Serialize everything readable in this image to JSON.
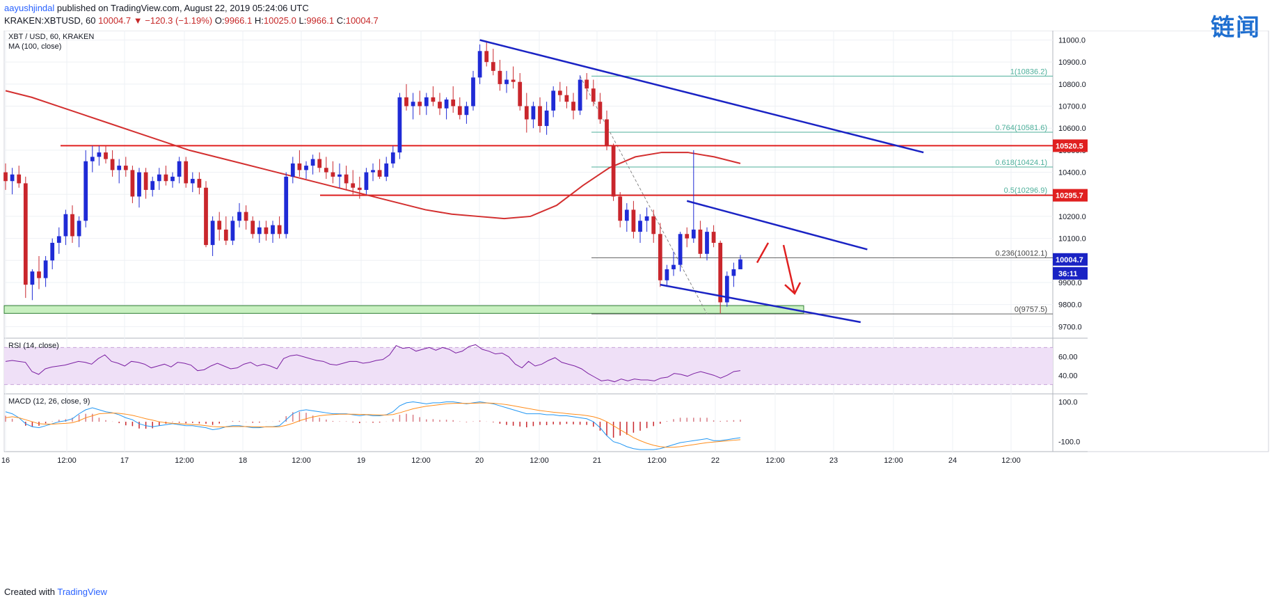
{
  "header": {
    "author": "aayushjindal",
    "published": "published on TradingView.com, August 22, 2019 05:24:06 UTC",
    "symbol": "KRAKEN:XBTUSD, 60",
    "last": "10004.7",
    "change_arrow": "▼",
    "change": "−120.3 (−1.19%)",
    "ohlc": {
      "o_label": "O:",
      "o": "9966.1",
      "h_label": "H:",
      "h": "10025.0",
      "l_label": "L:",
      "l": "9966.1",
      "c_label": "C:",
      "c": "10004.7"
    }
  },
  "watermark": "链闻",
  "footer": {
    "prefix": "Created with",
    "brand": "TradingView"
  },
  "colors": {
    "up": "#1f2bd6",
    "down": "#c9262c",
    "ma": "#d32f2f",
    "trend": "#1a23c4",
    "hline": "#e02020",
    "support_fill": "#c8f0c0",
    "support_stroke": "#2e7d32",
    "rsi_line": "#7b1fa2",
    "rsi_band": "#efe0f7",
    "macd": "#2196f3",
    "signal": "#ff8c1a",
    "hist": "#c9262c",
    "fib": "#4caf9a"
  },
  "chart_data": [
    {
      "type": "candlestick",
      "title": "XBT / USD, 60, KRAKEN",
      "indicator": "MA (100, close)",
      "x_ticks": [
        "16",
        "12:00",
        "17",
        "12:00",
        "18",
        "12:00",
        "19",
        "12:00",
        "20",
        "12:00",
        "21",
        "12:00",
        "22",
        "12:00",
        "23",
        "12:00",
        "24",
        "12:00"
      ],
      "y_ticks": [
        "11000.0",
        "10900.0",
        "10800.0",
        "10700.0",
        "10600.0",
        "10500.0",
        "10400.0",
        "10300.0",
        "10200.0",
        "10100.0",
        "10000.0",
        "9900.0",
        "9800.0",
        "9700.0"
      ],
      "ylim": [
        9660,
        11030
      ],
      "candles": [
        [
          10400,
          10440,
          10320,
          10360
        ],
        [
          10360,
          10420,
          10300,
          10390
        ],
        [
          10390,
          10430,
          10330,
          10350
        ],
        [
          10350,
          10380,
          9830,
          9890
        ],
        [
          9890,
          9960,
          9820,
          9950
        ],
        [
          9950,
          10020,
          9870,
          9920
        ],
        [
          9920,
          10020,
          9880,
          10000
        ],
        [
          10000,
          10100,
          9960,
          10080
        ],
        [
          10080,
          10150,
          10030,
          10110
        ],
        [
          10110,
          10230,
          10070,
          10210
        ],
        [
          10210,
          10250,
          10080,
          10110
        ],
        [
          10110,
          10200,
          10060,
          10180
        ],
        [
          10180,
          10500,
          10150,
          10450
        ],
        [
          10450,
          10520,
          10400,
          10470
        ],
        [
          10470,
          10520,
          10430,
          10490
        ],
        [
          10490,
          10520,
          10440,
          10460
        ],
        [
          10460,
          10500,
          10380,
          10410
        ],
        [
          10410,
          10460,
          10350,
          10430
        ],
        [
          10430,
          10470,
          10380,
          10410
        ],
        [
          10410,
          10430,
          10260,
          10290
        ],
        [
          10290,
          10420,
          10240,
          10400
        ],
        [
          10400,
          10420,
          10280,
          10320
        ],
        [
          10320,
          10380,
          10290,
          10360
        ],
        [
          10360,
          10420,
          10320,
          10390
        ],
        [
          10390,
          10430,
          10340,
          10360
        ],
        [
          10360,
          10400,
          10330,
          10380
        ],
        [
          10380,
          10470,
          10350,
          10450
        ],
        [
          10450,
          10470,
          10330,
          10350
        ],
        [
          10350,
          10400,
          10310,
          10370
        ],
        [
          10370,
          10400,
          10300,
          10330
        ],
        [
          10330,
          10360,
          10060,
          10070
        ],
        [
          10070,
          10200,
          10020,
          10180
        ],
        [
          10180,
          10220,
          10090,
          10140
        ],
        [
          10140,
          10200,
          10070,
          10090
        ],
        [
          10090,
          10200,
          10070,
          10180
        ],
        [
          10180,
          10260,
          10150,
          10220
        ],
        [
          10220,
          10250,
          10140,
          10180
        ],
        [
          10180,
          10200,
          10100,
          10120
        ],
        [
          10120,
          10180,
          10080,
          10150
        ],
        [
          10150,
          10180,
          10090,
          10120
        ],
        [
          10120,
          10180,
          10080,
          10160
        ],
        [
          10160,
          10200,
          10100,
          10120
        ],
        [
          10120,
          10400,
          10100,
          10380
        ],
        [
          10380,
          10470,
          10350,
          10440
        ],
        [
          10440,
          10500,
          10380,
          10410
        ],
        [
          10410,
          10450,
          10370,
          10430
        ],
        [
          10430,
          10480,
          10390,
          10460
        ],
        [
          10460,
          10490,
          10400,
          10420
        ],
        [
          10420,
          10470,
          10370,
          10400
        ],
        [
          10400,
          10450,
          10350,
          10380
        ],
        [
          10380,
          10440,
          10330,
          10390
        ],
        [
          10390,
          10430,
          10320,
          10350
        ],
        [
          10350,
          10410,
          10300,
          10330
        ],
        [
          10330,
          10380,
          10280,
          10320
        ],
        [
          10320,
          10420,
          10300,
          10400
        ],
        [
          10400,
          10440,
          10360,
          10410
        ],
        [
          10410,
          10460,
          10370,
          10380
        ],
        [
          10380,
          10470,
          10360,
          10440
        ],
        [
          10440,
          10520,
          10420,
          10490
        ],
        [
          10490,
          10760,
          10460,
          10740
        ],
        [
          10740,
          10800,
          10680,
          10700
        ],
        [
          10700,
          10760,
          10640,
          10720
        ],
        [
          10720,
          10770,
          10660,
          10700
        ],
        [
          10700,
          10760,
          10660,
          10740
        ],
        [
          10740,
          10790,
          10700,
          10720
        ],
        [
          10720,
          10760,
          10660,
          10690
        ],
        [
          10690,
          10740,
          10640,
          10730
        ],
        [
          10730,
          10790,
          10670,
          10700
        ],
        [
          10700,
          10740,
          10640,
          10660
        ],
        [
          10660,
          10720,
          10620,
          10700
        ],
        [
          10700,
          10860,
          10680,
          10830
        ],
        [
          10830,
          10980,
          10800,
          10950
        ],
        [
          10950,
          10990,
          10880,
          10900
        ],
        [
          10900,
          10960,
          10840,
          10860
        ],
        [
          10860,
          10910,
          10770,
          10800
        ],
        [
          10800,
          10860,
          10760,
          10820
        ],
        [
          10820,
          10880,
          10780,
          10810
        ],
        [
          10810,
          10850,
          10680,
          10700
        ],
        [
          10700,
          10760,
          10580,
          10640
        ],
        [
          10640,
          10720,
          10600,
          10700
        ],
        [
          10700,
          10740,
          10580,
          10610
        ],
        [
          10610,
          10720,
          10570,
          10680
        ],
        [
          10680,
          10790,
          10650,
          10770
        ],
        [
          10770,
          10810,
          10720,
          10750
        ],
        [
          10750,
          10790,
          10690,
          10720
        ],
        [
          10720,
          10760,
          10640,
          10680
        ],
        [
          10680,
          10840,
          10660,
          10820
        ],
        [
          10820,
          10850,
          10730,
          10780
        ],
        [
          10780,
          10820,
          10700,
          10720
        ],
        [
          10720,
          10760,
          10620,
          10640
        ],
        [
          10640,
          10680,
          10500,
          10520
        ],
        [
          10520,
          10530,
          10270,
          10290
        ],
        [
          10290,
          10310,
          10150,
          10180
        ],
        [
          10180,
          10260,
          10130,
          10230
        ],
        [
          10230,
          10270,
          10100,
          10130
        ],
        [
          10130,
          10210,
          10080,
          10180
        ],
        [
          10180,
          10240,
          10130,
          10200
        ],
        [
          10200,
          10230,
          10080,
          10120
        ],
        [
          10120,
          10170,
          9880,
          9910
        ],
        [
          9910,
          9980,
          9880,
          9960
        ],
        [
          9960,
          10040,
          9930,
          9980
        ],
        [
          9980,
          10130,
          9950,
          10120
        ],
        [
          10120,
          10150,
          10060,
          10100
        ],
        [
          10100,
          10500,
          10080,
          10140
        ],
        [
          10140,
          10180,
          10010,
          10030
        ],
        [
          10030,
          10150,
          10000,
          10130
        ],
        [
          10130,
          10160,
          10060,
          10080
        ],
        [
          10080,
          10090,
          9760,
          9810
        ],
        [
          9810,
          9950,
          9790,
          9930
        ],
        [
          9930,
          9990,
          9880,
          9960
        ],
        [
          9960,
          10025,
          9966,
          10005
        ]
      ],
      "ma_100": [
        10770,
        10740,
        10700,
        10660,
        10620,
        10580,
        10540,
        10500,
        10470,
        10440,
        10410,
        10380,
        10350,
        10320,
        10290,
        10260,
        10230,
        10210,
        10200,
        10190,
        10200,
        10250,
        10340,
        10420,
        10470,
        10490,
        10490,
        10470,
        10440
      ],
      "resistance_levels": [
        10520.5,
        10295.7
      ],
      "support_zone": [
        9760,
        9795
      ],
      "current_price": "10004.7",
      "countdown": "36:11",
      "level_labels": [
        "10520.5",
        "10295.7"
      ],
      "fib_levels": [
        {
          "label": "1(10836.2)",
          "value": 10836.2
        },
        {
          "label": "0.764(10581.6)",
          "value": 10581.6
        },
        {
          "label": "0.618(10424.1)",
          "value": 10424.1
        },
        {
          "label": "0.5(10296.9)",
          "value": 10296.9
        },
        {
          "label": "0.236(10012.1)",
          "value": 10012.1
        },
        {
          "label": "0(9757.5)",
          "value": 9757.5
        }
      ],
      "trendlines": [
        {
          "from": [
            71,
            11000
          ],
          "to": [
            127,
            10490
          ]
        },
        {
          "from": [
            102,
            10270
          ],
          "to": [
            129,
            10050
          ]
        },
        {
          "from": [
            98,
            9890
          ],
          "to": [
            128,
            9720
          ]
        }
      ]
    },
    {
      "type": "line",
      "title": "RSI (14, close)",
      "y_ticks": [
        "60.00",
        "40.00"
      ],
      "ylim": [
        20,
        80
      ],
      "band": [
        30,
        70
      ],
      "values": [
        55,
        56,
        55,
        54,
        44,
        41,
        47,
        49,
        50,
        51,
        53,
        55,
        54,
        52,
        58,
        62,
        55,
        53,
        50,
        55,
        54,
        52,
        48,
        50,
        52,
        49,
        54,
        53,
        51,
        45,
        46,
        50,
        53,
        50,
        47,
        48,
        52,
        54,
        50,
        52,
        50,
        47,
        58,
        61,
        62,
        60,
        58,
        56,
        55,
        52,
        51,
        53,
        55,
        55,
        53,
        54,
        56,
        57,
        62,
        72,
        69,
        70,
        66,
        68,
        70,
        67,
        70,
        68,
        64,
        66,
        71,
        73,
        68,
        66,
        63,
        64,
        60,
        52,
        48,
        55,
        50,
        52,
        56,
        59,
        54,
        52,
        50,
        47,
        42,
        38,
        34,
        35,
        33,
        36,
        34,
        36,
        35,
        35,
        34,
        37,
        38,
        42,
        41,
        39,
        42,
        44,
        42,
        40,
        37,
        40,
        44,
        45
      ]
    },
    {
      "type": "line",
      "title": "MACD (12, 26, close, 9)",
      "y_ticks": [
        "100.0",
        "-100.0"
      ],
      "ylim": [
        -150,
        140
      ],
      "macd": [
        50,
        40,
        20,
        -10,
        -25,
        -30,
        -20,
        -10,
        0,
        5,
        15,
        40,
        60,
        70,
        60,
        50,
        45,
        35,
        20,
        10,
        -10,
        -20,
        -25,
        -20,
        -15,
        -10,
        -15,
        -20,
        -20,
        -25,
        -30,
        -40,
        -35,
        -25,
        -20,
        -20,
        -25,
        -30,
        -30,
        -25,
        -25,
        -20,
        10,
        40,
        55,
        60,
        55,
        50,
        45,
        40,
        40,
        40,
        35,
        30,
        35,
        30,
        30,
        35,
        50,
        80,
        95,
        100,
        95,
        90,
        95,
        95,
        100,
        100,
        95,
        90,
        95,
        100,
        95,
        90,
        80,
        70,
        60,
        50,
        40,
        40,
        40,
        35,
        35,
        30,
        30,
        25,
        20,
        15,
        0,
        -30,
        -70,
        -100,
        -110,
        -125,
        -135,
        -140,
        -140,
        -140,
        -135,
        -125,
        -115,
        -105,
        -100,
        -95,
        -90,
        -85,
        -95,
        -95,
        -90,
        -85,
        -80
      ],
      "signal": [
        20,
        25,
        20,
        10,
        0,
        -10,
        -12,
        -12,
        -10,
        -8,
        -5,
        5,
        20,
        30,
        40,
        42,
        44,
        42,
        38,
        32,
        24,
        15,
        8,
        0,
        -5,
        -8,
        -10,
        -12,
        -14,
        -16,
        -20,
        -24,
        -26,
        -26,
        -24,
        -24,
        -24,
        -25,
        -26,
        -26,
        -26,
        -25,
        -18,
        -8,
        5,
        15,
        24,
        30,
        34,
        36,
        38,
        38,
        38,
        37,
        36,
        35,
        34,
        34,
        36,
        45,
        55,
        65,
        72,
        78,
        82,
        86,
        90,
        92,
        93,
        92,
        93,
        94,
        94,
        93,
        90,
        86,
        80,
        74,
        68,
        62,
        56,
        52,
        48,
        45,
        41,
        38,
        35,
        31,
        25,
        15,
        0,
        -20,
        -40,
        -60,
        -80,
        -95,
        -108,
        -118,
        -125,
        -128,
        -128,
        -125,
        -120,
        -115,
        -110,
        -105,
        -102,
        -99,
        -96,
        -93,
        -90
      ]
    }
  ]
}
